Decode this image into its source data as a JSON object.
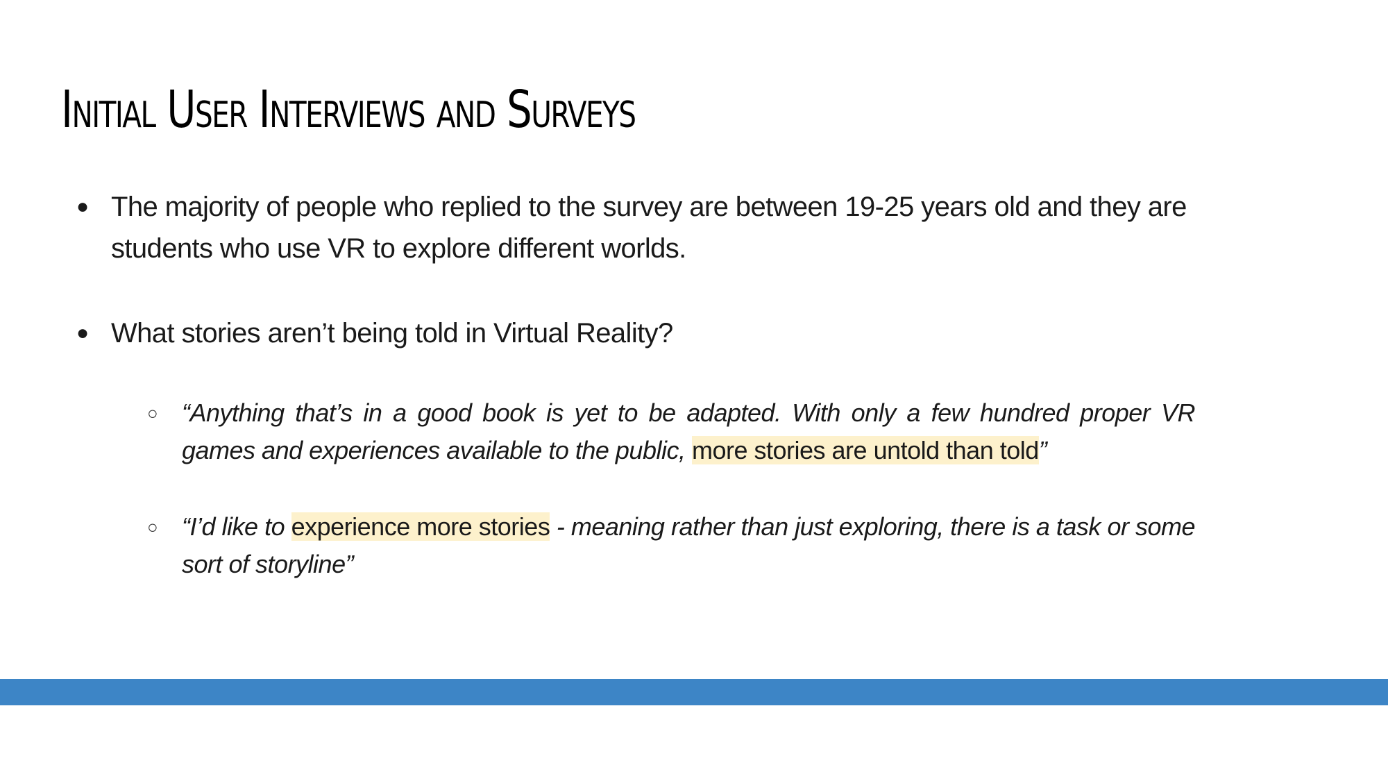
{
  "slide": {
    "title": "Initial User Interviews and Surveys",
    "bullet_glyph": "●",
    "sub_bullet_glyph": "○",
    "bullets": [
      {
        "text": "The majority of people who replied to the survey are between 19-25 years old and they are students who use VR to explore different worlds."
      },
      {
        "text": "What stories aren’t being told in Virtual Reality?"
      }
    ],
    "quotes": [
      {
        "before": "“Anything that’s in a good book is yet to be adapted. With only a few hundred proper VR games and experiences available to the public, ",
        "highlight": "more stories are untold than told",
        "after": "”"
      },
      {
        "before": "“I’d like to ",
        "highlight": "experience more stories",
        "after": " - meaning rather than just exploring, there is a task or some sort of storyline”"
      }
    ]
  },
  "colors": {
    "accent_bar": "#3d85c6",
    "highlight": "#fdf1cc",
    "text": "#1a1a1a",
    "background": "#ffffff"
  }
}
